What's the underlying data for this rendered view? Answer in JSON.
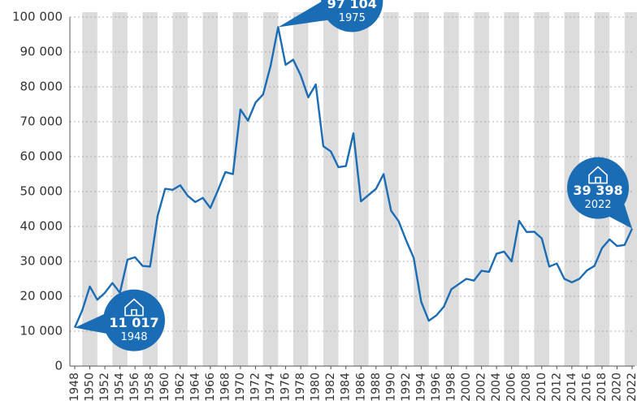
{
  "chart_data": {
    "type": "line",
    "x": [
      1948,
      1949,
      1950,
      1951,
      1952,
      1953,
      1954,
      1955,
      1956,
      1957,
      1958,
      1959,
      1960,
      1961,
      1962,
      1963,
      1964,
      1965,
      1966,
      1967,
      1968,
      1969,
      1970,
      1971,
      1972,
      1973,
      1974,
      1975,
      1976,
      1977,
      1978,
      1979,
      1980,
      1981,
      1982,
      1983,
      1984,
      1985,
      1986,
      1987,
      1988,
      1989,
      1990,
      1991,
      1992,
      1993,
      1994,
      1995,
      1996,
      1997,
      1998,
      1999,
      2000,
      2001,
      2002,
      2003,
      2004,
      2005,
      2006,
      2007,
      2008,
      2009,
      2010,
      2011,
      2012,
      2013,
      2014,
      2015,
      2016,
      2017,
      2018,
      2019,
      2020,
      2021,
      2022
    ],
    "series": [
      {
        "color": "#1a6db5",
        "values": [
          11017,
          16000,
          22800,
          19000,
          21000,
          23800,
          21000,
          30500,
          31200,
          28700,
          28500,
          43000,
          50800,
          50500,
          51800,
          48800,
          47000,
          48200,
          45300,
          50300,
          55600,
          55000,
          73500,
          70300,
          75500,
          77800,
          86000,
          97104,
          86300,
          87800,
          83300,
          77000,
          80700,
          63000,
          61500,
          57000,
          57300,
          66700,
          47200,
          49000,
          50800,
          55000,
          44500,
          41500,
          36000,
          31000,
          18400,
          13000,
          14500,
          17000,
          22000,
          23500,
          25000,
          24500,
          27300,
          27000,
          32200,
          32800,
          30000,
          41600,
          38400,
          38500,
          36600,
          28500,
          29400,
          25000,
          24000,
          25000,
          27400,
          28700,
          33800,
          36300,
          34400,
          34700,
          39398
        ]
      }
    ],
    "xlim": [
      1948,
      2022
    ],
    "xticks": [
      1948,
      1950,
      1952,
      1954,
      1956,
      1958,
      1960,
      1962,
      1964,
      1966,
      1968,
      1970,
      1972,
      1974,
      1976,
      1978,
      1980,
      1982,
      1984,
      1986,
      1988,
      1990,
      1992,
      1994,
      1996,
      1998,
      2000,
      2002,
      2004,
      2006,
      2008,
      2010,
      2012,
      2014,
      2016,
      2018,
      2020,
      2022
    ],
    "ylim": [
      0,
      100000
    ],
    "yticks": [
      0,
      {
        "value": 10000,
        "label": "10 000"
      },
      {
        "value": 20000,
        "label": "20 000"
      },
      {
        "value": 30000,
        "label": "30 000"
      },
      {
        "value": 40000,
        "label": "40 000"
      },
      {
        "value": 50000,
        "label": "50 000"
      },
      {
        "value": 60000,
        "label": "60 000"
      },
      {
        "value": 70000,
        "label": "70 000"
      },
      {
        "value": 80000,
        "label": "80 000"
      },
      {
        "value": 90000,
        "label": "90 000"
      },
      {
        "value": 100000,
        "label": "100 000"
      }
    ],
    "grid": true,
    "annotations": [
      {
        "x": 1948,
        "label": "11 017"
      },
      {
        "x": 1975,
        "label": "97 104"
      },
      {
        "x": 2022,
        "label": "39 398"
      }
    ]
  }
}
